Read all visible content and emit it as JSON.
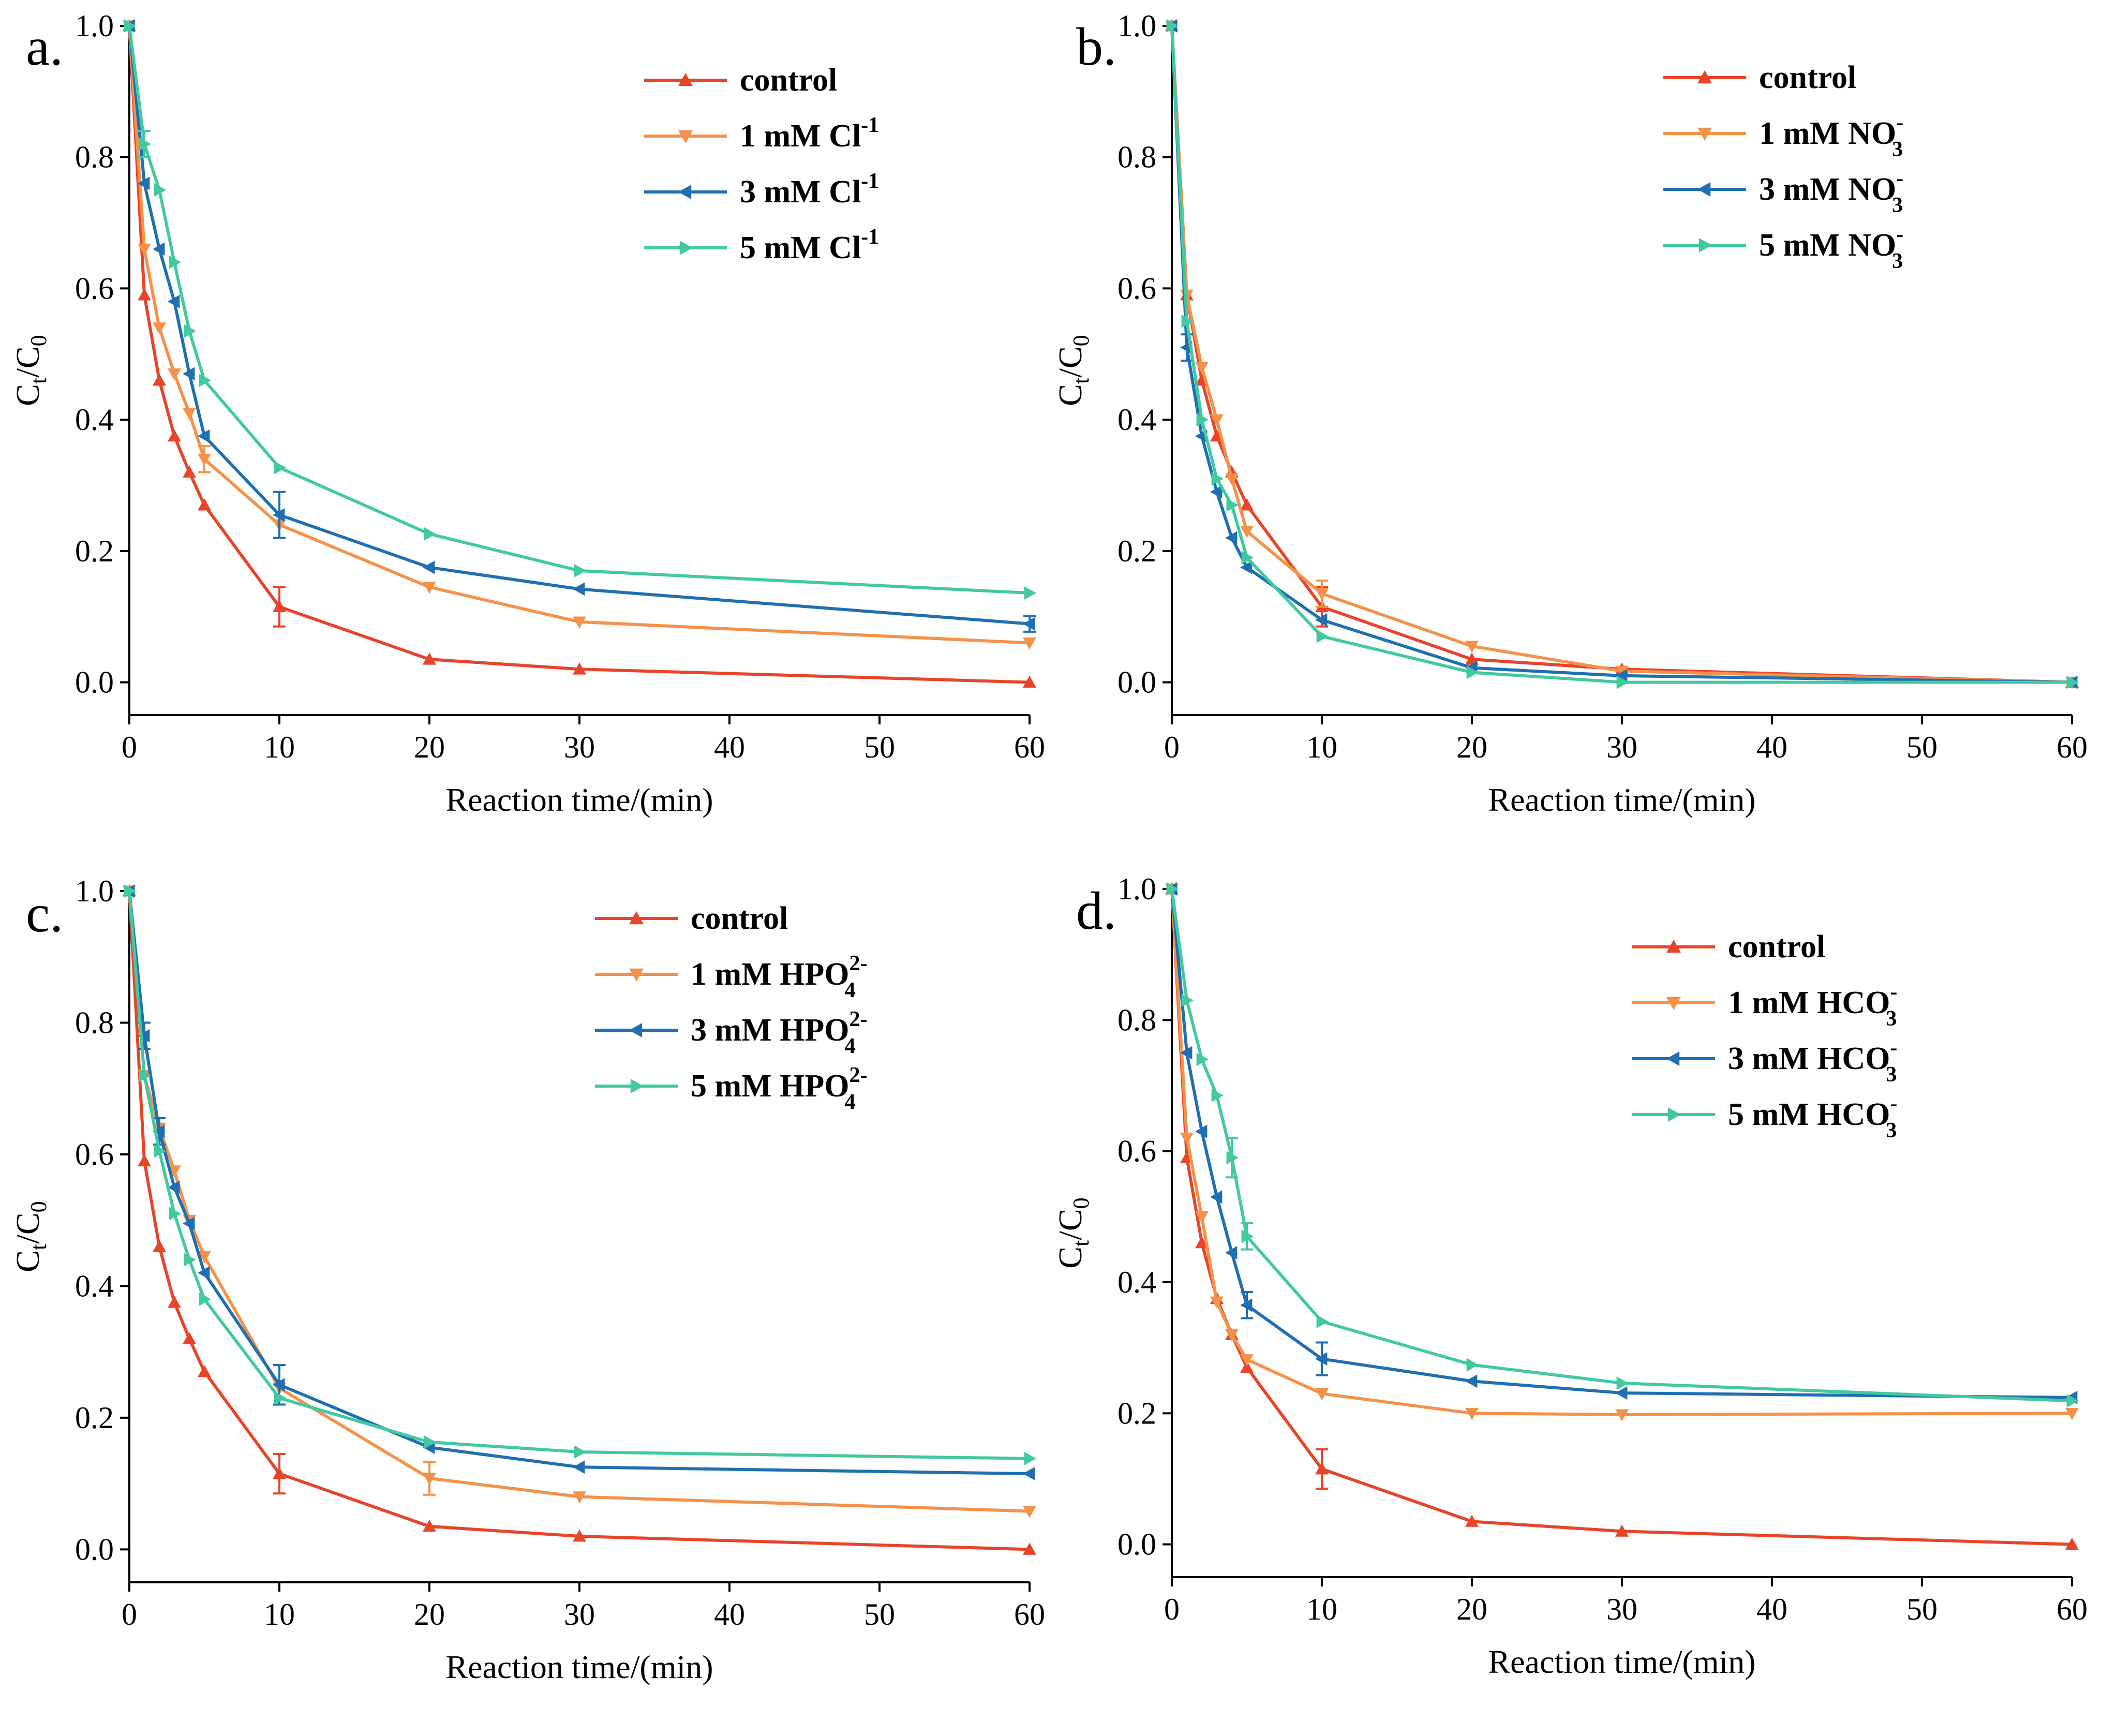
{
  "figure": {
    "xlabel": "Reaction time/(min)",
    "ylabel_main": "C",
    "ylabel_sub1": "t",
    "ylabel_slash": "/C",
    "ylabel_sub2": "0",
    "colors": {
      "control": "#e8442a",
      "s1": "#f4924a",
      "s3": "#1f6fb2",
      "s5": "#42c9a0"
    }
  },
  "chart_data": [
    {
      "type": "line",
      "panel": "a.",
      "xlabel": "Reaction time/(min)",
      "ylabel": "Ct/C0",
      "xlim": [
        0,
        60
      ],
      "ylim": [
        -0.05,
        1.0
      ],
      "xticks": [
        "0",
        "10",
        "20",
        "30",
        "40",
        "50",
        "60"
      ],
      "yticks": [
        "0.0",
        "0.2",
        "0.4",
        "0.6",
        "0.8",
        "1.0"
      ],
      "x": [
        0,
        1,
        2,
        3,
        4,
        5,
        10,
        20,
        30,
        60
      ],
      "legend_position": "top-right",
      "series": [
        {
          "name": "control",
          "label_main": "control",
          "label_sub": "",
          "label_sup": "",
          "marker": "up",
          "color": "#e8442a",
          "values": [
            1.0,
            0.59,
            0.46,
            0.375,
            0.32,
            0.27,
            0.115,
            0.035,
            0.02,
            0.0
          ],
          "error": {
            "10": 0.03
          }
        },
        {
          "name": "1 mM Cl-1",
          "label_main": "1 mM Cl",
          "label_sub": "",
          "label_sup": "-1",
          "marker": "down",
          "color": "#f4924a",
          "values": [
            1.0,
            0.66,
            0.54,
            0.47,
            0.41,
            0.34,
            0.24,
            0.145,
            0.092,
            0.06
          ],
          "error": {
            "5": 0.02
          }
        },
        {
          "name": "3 mM Cl-1",
          "label_main": "3 mM Cl",
          "label_sub": "",
          "label_sup": "-1",
          "marker": "left",
          "color": "#1f6fb2",
          "values": [
            1.0,
            0.76,
            0.66,
            0.58,
            0.47,
            0.375,
            0.255,
            0.175,
            0.142,
            0.089
          ],
          "error": {
            "10": 0.035,
            "60": 0.012
          }
        },
        {
          "name": "5 mM Cl-1",
          "label_main": "5 mM Cl",
          "label_sub": "",
          "label_sup": "-1",
          "marker": "right",
          "color": "#42c9a0",
          "values": [
            1.0,
            0.82,
            0.75,
            0.64,
            0.535,
            0.46,
            0.327,
            0.226,
            0.17,
            0.136
          ],
          "error": {
            "1": 0.02
          }
        }
      ]
    },
    {
      "type": "line",
      "panel": "b.",
      "xlabel": "Reaction time/(min)",
      "ylabel": "Ct/C0",
      "xlim": [
        0,
        60
      ],
      "ylim": [
        -0.05,
        1.0
      ],
      "xticks": [
        "0",
        "10",
        "20",
        "30",
        "40",
        "50",
        "60"
      ],
      "yticks": [
        "0.0",
        "0.2",
        "0.4",
        "0.6",
        "0.8",
        "1.0"
      ],
      "x": [
        0,
        1,
        2,
        3,
        4,
        5,
        10,
        20,
        30,
        60
      ],
      "legend_position": "top-right",
      "series": [
        {
          "name": "control",
          "label_main": "control",
          "label_sub": "",
          "label_sup": "",
          "marker": "up",
          "color": "#e8442a",
          "values": [
            1.0,
            0.59,
            0.46,
            0.375,
            0.32,
            0.27,
            0.115,
            0.035,
            0.02,
            0.0
          ],
          "error": {
            "10": 0.03
          }
        },
        {
          "name": "1 mM NO3-",
          "label_main": "1 mM NO",
          "label_sub": "3",
          "label_sup": "-",
          "marker": "down",
          "color": "#f4924a",
          "values": [
            1.0,
            0.59,
            0.48,
            0.4,
            0.31,
            0.23,
            0.135,
            0.055,
            0.017,
            0.0
          ],
          "error": {
            "10": 0.02
          }
        },
        {
          "name": "3 mM NO3-",
          "label_main": "3 mM NO",
          "label_sub": "3",
          "label_sup": "-",
          "marker": "left",
          "color": "#1f6fb2",
          "values": [
            1.0,
            0.51,
            0.375,
            0.29,
            0.22,
            0.175,
            0.095,
            0.022,
            0.01,
            0.0
          ],
          "error": {
            "1": 0.02
          }
        },
        {
          "name": "5 mM NO3-",
          "label_main": "5 mM NO",
          "label_sub": "3",
          "label_sup": "-",
          "marker": "right",
          "color": "#42c9a0",
          "values": [
            1.0,
            0.55,
            0.4,
            0.31,
            0.27,
            0.19,
            0.07,
            0.015,
            0.0,
            0.0
          ],
          "error": {}
        }
      ]
    },
    {
      "type": "line",
      "panel": "c.",
      "xlabel": "Reaction time/(min)",
      "ylabel": "Ct/C0",
      "xlim": [
        0,
        60
      ],
      "ylim": [
        -0.05,
        1.0
      ],
      "xticks": [
        "0",
        "10",
        "20",
        "30",
        "40",
        "50",
        "60"
      ],
      "yticks": [
        "0.0",
        "0.2",
        "0.4",
        "0.6",
        "0.8",
        "1.0"
      ],
      "x": [
        0,
        1,
        2,
        3,
        4,
        5,
        10,
        20,
        30,
        60
      ],
      "legend_position": "top-right",
      "series": [
        {
          "name": "control",
          "label_main": "control",
          "label_sub": "",
          "label_sup": "",
          "marker": "up",
          "color": "#e8442a",
          "values": [
            1.0,
            0.59,
            0.46,
            0.375,
            0.32,
            0.27,
            0.115,
            0.035,
            0.02,
            0.0
          ],
          "error": {
            "10": 0.03
          }
        },
        {
          "name": "1 mM HPO42-",
          "label_main": "1 mM HPO",
          "label_sub": "4",
          "label_sup": "2-",
          "marker": "down",
          "color": "#f4924a",
          "values": [
            1.0,
            0.72,
            0.64,
            0.575,
            0.5,
            0.445,
            0.245,
            0.108,
            0.08,
            0.058
          ],
          "error": {
            "20": 0.025
          }
        },
        {
          "name": "3 mM HPO42-",
          "label_main": "3 mM HPO",
          "label_sub": "4",
          "label_sup": "2-",
          "marker": "left",
          "color": "#1f6fb2",
          "values": [
            1.0,
            0.78,
            0.635,
            0.55,
            0.495,
            0.42,
            0.25,
            0.155,
            0.125,
            0.115
          ],
          "error": {
            "1": 0.02,
            "2": 0.02,
            "10": 0.03
          }
        },
        {
          "name": "5 mM HPO42-",
          "label_main": "5 mM HPO",
          "label_sub": "4",
          "label_sup": "2-",
          "marker": "right",
          "color": "#42c9a0",
          "values": [
            1.0,
            0.72,
            0.605,
            0.51,
            0.44,
            0.38,
            0.23,
            0.163,
            0.148,
            0.138
          ],
          "error": {}
        }
      ]
    },
    {
      "type": "line",
      "panel": "d.",
      "xlabel": "Reaction time/(min)",
      "ylabel": "Ct/C0",
      "xlim": [
        0,
        60
      ],
      "ylim": [
        -0.05,
        1.0
      ],
      "xticks": [
        "0",
        "10",
        "20",
        "30",
        "40",
        "50",
        "60"
      ],
      "yticks": [
        "0.0",
        "0.2",
        "0.4",
        "0.6",
        "0.8",
        "1.0"
      ],
      "x": [
        0,
        1,
        2,
        3,
        4,
        5,
        10,
        20,
        30,
        60
      ],
      "legend_position": "top-right",
      "series": [
        {
          "name": "control",
          "label_main": "control",
          "label_sub": "",
          "label_sup": "",
          "marker": "up",
          "color": "#e8442a",
          "values": [
            1.0,
            0.59,
            0.46,
            0.375,
            0.32,
            0.27,
            0.115,
            0.035,
            0.02,
            0.0
          ],
          "error": {
            "10": 0.03
          }
        },
        {
          "name": "1 mM HCO3-",
          "label_main": "1 mM HCO",
          "label_sub": "3",
          "label_sup": "-",
          "marker": "down",
          "color": "#f4924a",
          "values": [
            1.0,
            0.62,
            0.5,
            0.37,
            0.32,
            0.282,
            0.23,
            0.2,
            0.198,
            0.2
          ],
          "error": {}
        },
        {
          "name": "3 mM HCO3-",
          "label_main": "3 mM HCO",
          "label_sub": "3",
          "label_sup": "-",
          "marker": "left",
          "color": "#1f6fb2",
          "values": [
            1.0,
            0.75,
            0.63,
            0.53,
            0.445,
            0.365,
            0.283,
            0.249,
            0.231,
            0.224
          ],
          "error": {
            "5": 0.02,
            "10": 0.025
          }
        },
        {
          "name": "5 mM HCO3-",
          "label_main": "5 mM HCO",
          "label_sub": "3",
          "label_sup": "-",
          "marker": "right",
          "color": "#42c9a0",
          "values": [
            1.0,
            0.83,
            0.74,
            0.685,
            0.59,
            0.47,
            0.34,
            0.274,
            0.246,
            0.219
          ],
          "error": {
            "4": 0.03,
            "5": 0.02
          }
        }
      ]
    }
  ]
}
